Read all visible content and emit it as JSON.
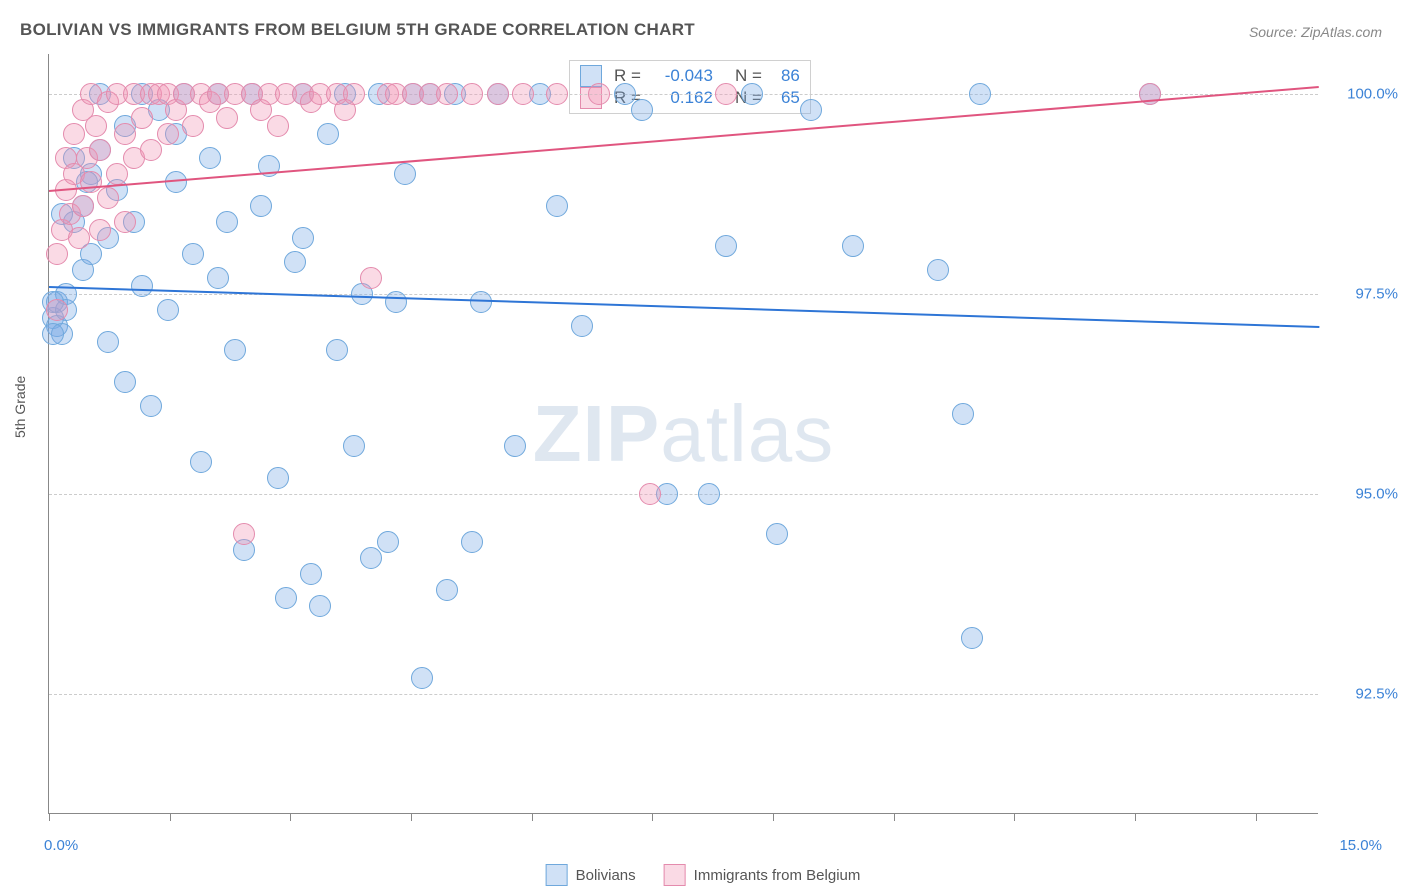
{
  "title": "BOLIVIAN VS IMMIGRANTS FROM BELGIUM 5TH GRADE CORRELATION CHART",
  "source": "Source: ZipAtlas.com",
  "ylabel": "5th Grade",
  "watermark": {
    "zip": "ZIP",
    "atlas": "atlas"
  },
  "chart": {
    "type": "scatter",
    "xlim": [
      0,
      15
    ],
    "ylim": [
      91,
      100.5
    ],
    "xticks_pct": [
      0,
      9.5,
      19,
      28.5,
      38,
      47.5,
      57,
      66.5,
      76,
      85.5,
      95
    ],
    "gridlines": [
      {
        "y": 92.5,
        "label": "92.5%"
      },
      {
        "y": 95.0,
        "label": "95.0%"
      },
      {
        "y": 97.5,
        "label": "97.5%"
      },
      {
        "y": 100.0,
        "label": "100.0%"
      }
    ],
    "xlim_labels": {
      "min": "0.0%",
      "max": "15.0%"
    },
    "background_color": "#ffffff",
    "grid_color": "#cccccc",
    "marker_radius": 11,
    "series": [
      {
        "name": "Bolivians",
        "color_fill": "rgba(120,170,230,0.35)",
        "color_stroke": "#6fa8dc",
        "trend": {
          "y0": 97.6,
          "y1": 97.1,
          "color": "#2e75d6"
        },
        "R": "-0.043",
        "N": "86",
        "points": [
          [
            0.05,
            97.2
          ],
          [
            0.1,
            97.4
          ],
          [
            0.1,
            97.1
          ],
          [
            0.15,
            97.0
          ],
          [
            0.2,
            97.3
          ],
          [
            0.2,
            97.5
          ],
          [
            0.3,
            98.4
          ],
          [
            0.4,
            98.6
          ],
          [
            0.4,
            97.8
          ],
          [
            0.5,
            98.0
          ],
          [
            0.5,
            99.0
          ],
          [
            0.6,
            99.3
          ],
          [
            0.7,
            98.2
          ],
          [
            0.7,
            96.9
          ],
          [
            0.8,
            98.8
          ],
          [
            0.9,
            96.4
          ],
          [
            0.9,
            99.6
          ],
          [
            1.0,
            98.4
          ],
          [
            1.1,
            97.6
          ],
          [
            1.1,
            100.0
          ],
          [
            1.2,
            96.1
          ],
          [
            1.3,
            99.8
          ],
          [
            1.4,
            97.3
          ],
          [
            1.5,
            98.9
          ],
          [
            1.5,
            99.5
          ],
          [
            1.6,
            100.0
          ],
          [
            1.7,
            98.0
          ],
          [
            1.8,
            95.4
          ],
          [
            1.9,
            99.2
          ],
          [
            2.0,
            97.7
          ],
          [
            2.0,
            100.0
          ],
          [
            2.1,
            98.4
          ],
          [
            2.2,
            96.8
          ],
          [
            2.3,
            94.3
          ],
          [
            2.4,
            100.0
          ],
          [
            2.5,
            98.6
          ],
          [
            2.6,
            99.1
          ],
          [
            2.7,
            95.2
          ],
          [
            2.8,
            93.7
          ],
          [
            2.9,
            97.9
          ],
          [
            3.0,
            100.0
          ],
          [
            3.0,
            98.2
          ],
          [
            3.1,
            94.0
          ],
          [
            3.2,
            93.6
          ],
          [
            3.3,
            99.5
          ],
          [
            3.4,
            96.8
          ],
          [
            3.5,
            100.0
          ],
          [
            3.6,
            95.6
          ],
          [
            3.7,
            97.5
          ],
          [
            3.8,
            94.2
          ],
          [
            3.9,
            100.0
          ],
          [
            4.0,
            94.4
          ],
          [
            4.1,
            97.4
          ],
          [
            4.2,
            99.0
          ],
          [
            4.3,
            100.0
          ],
          [
            4.4,
            92.7
          ],
          [
            4.5,
            100.0
          ],
          [
            4.7,
            93.8
          ],
          [
            4.8,
            100.0
          ],
          [
            5.0,
            94.4
          ],
          [
            5.1,
            97.4
          ],
          [
            5.3,
            100.0
          ],
          [
            5.5,
            95.6
          ],
          [
            5.8,
            100.0
          ],
          [
            6.0,
            98.6
          ],
          [
            6.3,
            97.1
          ],
          [
            6.8,
            100.0
          ],
          [
            7.0,
            99.8
          ],
          [
            7.3,
            95.0
          ],
          [
            7.8,
            95.0
          ],
          [
            8.0,
            98.1
          ],
          [
            8.3,
            100.0
          ],
          [
            8.6,
            94.5
          ],
          [
            9.0,
            99.8
          ],
          [
            9.5,
            98.1
          ],
          [
            10.5,
            97.8
          ],
          [
            10.8,
            96.0
          ],
          [
            10.9,
            93.2
          ],
          [
            11.0,
            100.0
          ],
          [
            13.0,
            100.0
          ],
          [
            0.05,
            97.0
          ],
          [
            0.05,
            97.4
          ],
          [
            0.15,
            98.5
          ],
          [
            0.3,
            99.2
          ],
          [
            0.45,
            98.9
          ],
          [
            0.6,
            100.0
          ]
        ]
      },
      {
        "name": "Immigrants from Belgium",
        "color_fill": "rgba(240,150,180,0.35)",
        "color_stroke": "#e48bad",
        "trend": {
          "y0": 98.8,
          "y1": 100.1,
          "color": "#e0557f"
        },
        "R": "0.162",
        "N": "65",
        "points": [
          [
            0.1,
            97.3
          ],
          [
            0.1,
            98.0
          ],
          [
            0.15,
            98.3
          ],
          [
            0.2,
            98.8
          ],
          [
            0.2,
            99.2
          ],
          [
            0.25,
            98.5
          ],
          [
            0.3,
            99.0
          ],
          [
            0.3,
            99.5
          ],
          [
            0.35,
            98.2
          ],
          [
            0.4,
            99.8
          ],
          [
            0.4,
            98.6
          ],
          [
            0.45,
            99.2
          ],
          [
            0.5,
            100.0
          ],
          [
            0.5,
            98.9
          ],
          [
            0.55,
            99.6
          ],
          [
            0.6,
            98.3
          ],
          [
            0.6,
            99.3
          ],
          [
            0.7,
            99.9
          ],
          [
            0.7,
            98.7
          ],
          [
            0.8,
            100.0
          ],
          [
            0.8,
            99.0
          ],
          [
            0.9,
            99.5
          ],
          [
            0.9,
            98.4
          ],
          [
            1.0,
            100.0
          ],
          [
            1.0,
            99.2
          ],
          [
            1.1,
            99.7
          ],
          [
            1.2,
            100.0
          ],
          [
            1.2,
            99.3
          ],
          [
            1.3,
            100.0
          ],
          [
            1.4,
            99.5
          ],
          [
            1.4,
            100.0
          ],
          [
            1.5,
            99.8
          ],
          [
            1.6,
            100.0
          ],
          [
            1.7,
            99.6
          ],
          [
            1.8,
            100.0
          ],
          [
            1.9,
            99.9
          ],
          [
            2.0,
            100.0
          ],
          [
            2.1,
            99.7
          ],
          [
            2.2,
            100.0
          ],
          [
            2.3,
            94.5
          ],
          [
            2.4,
            100.0
          ],
          [
            2.5,
            99.8
          ],
          [
            2.6,
            100.0
          ],
          [
            2.7,
            99.6
          ],
          [
            2.8,
            100.0
          ],
          [
            3.0,
            100.0
          ],
          [
            3.1,
            99.9
          ],
          [
            3.2,
            100.0
          ],
          [
            3.4,
            100.0
          ],
          [
            3.5,
            99.8
          ],
          [
            3.6,
            100.0
          ],
          [
            3.8,
            97.7
          ],
          [
            4.0,
            100.0
          ],
          [
            4.1,
            100.0
          ],
          [
            4.3,
            100.0
          ],
          [
            4.5,
            100.0
          ],
          [
            4.7,
            100.0
          ],
          [
            5.0,
            100.0
          ],
          [
            5.3,
            100.0
          ],
          [
            5.6,
            100.0
          ],
          [
            6.0,
            100.0
          ],
          [
            6.5,
            100.0
          ],
          [
            7.1,
            95.0
          ],
          [
            8.0,
            100.0
          ],
          [
            13.0,
            100.0
          ]
        ]
      }
    ]
  },
  "legend": {
    "series1": "Bolivians",
    "series2": "Immigrants from Belgium"
  },
  "stats": {
    "r_label": "R =",
    "n_label": "N ="
  }
}
